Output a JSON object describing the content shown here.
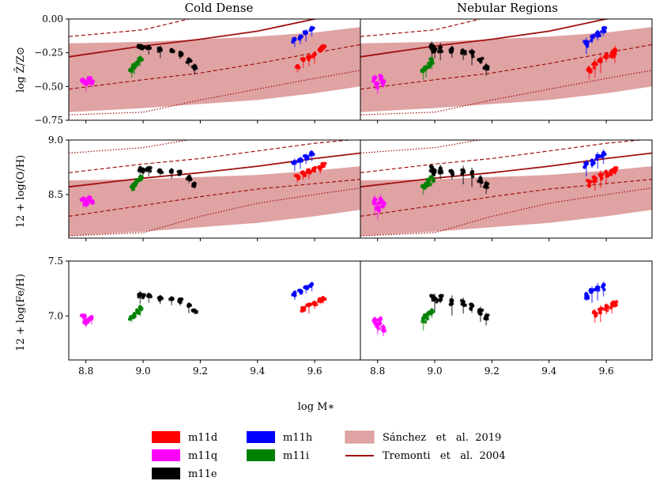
{
  "chart_data": {
    "type": "scatter",
    "column_titles": [
      "Cold Dense",
      "Nebular Regions"
    ],
    "xlabel": "log M∗",
    "xlim": [
      8.74,
      9.76
    ],
    "xticks": [
      8.8,
      9.0,
      9.2,
      9.4,
      9.6
    ],
    "xtick_labels": [
      "8.8",
      "9.0",
      "9.2",
      "9.4",
      "9.6"
    ],
    "rows": [
      {
        "ylabel": "log Z̄/Z⊙",
        "ylim": [
          -0.75,
          0.0
        ],
        "yticks": [
          -0.75,
          -0.5,
          -0.25,
          0.0
        ],
        "ytick_labels": [
          "−0.75",
          "−0.50",
          "−0.25",
          "0.00"
        ],
        "sanchez_band": {
          "x": [
            8.74,
            9.0,
            9.2,
            9.4,
            9.6,
            9.76
          ],
          "low": [
            -0.69,
            -0.66,
            -0.63,
            -0.6,
            -0.55,
            -0.5
          ],
          "high": [
            -0.18,
            -0.17,
            -0.15,
            -0.13,
            -0.1,
            -0.06
          ]
        },
        "tremonti_median": {
          "x": [
            8.74,
            9.0,
            9.2,
            9.4,
            9.6,
            9.76
          ],
          "y": [
            -0.28,
            -0.2,
            -0.15,
            -0.09,
            0.0,
            0.05
          ]
        },
        "tremonti_16_84": {
          "x": [
            8.74,
            9.0,
            9.2,
            9.4,
            9.6,
            9.76
          ],
          "low": [
            -0.52,
            -0.45,
            -0.4,
            -0.33,
            -0.25,
            -0.19
          ],
          "high": [
            -0.13,
            -0.08,
            0.02,
            0.12,
            0.22,
            0.3
          ]
        },
        "tremonti_2_98": {
          "x": [
            8.74,
            9.0,
            9.2,
            9.4,
            9.6,
            9.76
          ],
          "low": [
            -0.71,
            -0.69,
            -0.6,
            -0.52,
            -0.44,
            -0.38
          ],
          "high": [
            0.0,
            0.08,
            0.2,
            0.3,
            0.42,
            0.5
          ]
        },
        "series": [
          {
            "name": "m11d",
            "color": "#ff0000",
            "x": [
              9.54,
              9.56,
              9.58,
              9.6,
              9.62,
              9.63
            ],
            "cold": [
              -0.35,
              -0.3,
              -0.28,
              -0.26,
              -0.22,
              -0.2
            ],
            "nebular": [
              -0.37,
              -0.33,
              -0.3,
              -0.27,
              -0.25,
              -0.23
            ]
          },
          {
            "name": "m11q",
            "color": "#ff00ff",
            "x": [
              8.79,
              8.8,
              8.81,
              8.82
            ],
            "cold": [
              -0.45,
              -0.47,
              -0.44,
              -0.46
            ],
            "nebular": [
              -0.44,
              -0.48,
              -0.42,
              -0.46
            ]
          },
          {
            "name": "m11e",
            "color": "#000000",
            "x": [
              8.99,
              9.0,
              9.02,
              9.06,
              9.1,
              9.13,
              9.16,
              9.18
            ],
            "cold": [
              -0.2,
              -0.21,
              -0.21,
              -0.22,
              -0.23,
              -0.25,
              -0.3,
              -0.35
            ],
            "nebular": [
              -0.2,
              -0.22,
              -0.21,
              -0.22,
              -0.24,
              -0.25,
              -0.3,
              -0.35
            ]
          },
          {
            "name": "m11h",
            "color": "#0000ff",
            "x": [
              9.53,
              9.55,
              9.57,
              9.59
            ],
            "cold": [
              -0.15,
              -0.13,
              -0.1,
              -0.07
            ],
            "nebular": [
              -0.17,
              -0.13,
              -0.1,
              -0.07
            ]
          },
          {
            "name": "m11i",
            "color": "#008000",
            "x": [
              8.96,
              8.97,
              8.98,
              8.99
            ],
            "cold": [
              -0.37,
              -0.34,
              -0.32,
              -0.29
            ],
            "nebular": [
              -0.38,
              -0.36,
              -0.33,
              -0.3
            ]
          }
        ]
      },
      {
        "ylabel": "12 + log(O/H)",
        "ylim": [
          8.1,
          9.0
        ],
        "yticks": [
          8.5,
          9.0
        ],
        "ytick_labels": [
          "8.5",
          "9.0"
        ],
        "sanchez_band": {
          "x": [
            8.74,
            9.0,
            9.2,
            9.4,
            9.6,
            9.76
          ],
          "low": [
            8.12,
            8.16,
            8.2,
            8.24,
            8.3,
            8.36
          ],
          "high": [
            8.63,
            8.64,
            8.66,
            8.68,
            8.72,
            8.76
          ]
        },
        "tremonti_median": {
          "x": [
            8.74,
            9.0,
            9.2,
            9.4,
            9.6,
            9.76
          ],
          "y": [
            8.57,
            8.65,
            8.7,
            8.76,
            8.83,
            8.88
          ]
        },
        "tremonti_16_84": {
          "x": [
            8.74,
            9.0,
            9.2,
            9.4,
            9.6,
            9.76
          ],
          "low": [
            8.3,
            8.4,
            8.48,
            8.55,
            8.6,
            8.64
          ],
          "high": [
            8.7,
            8.78,
            8.83,
            8.9,
            8.97,
            9.01
          ]
        },
        "tremonti_2_98": {
          "x": [
            8.74,
            9.0,
            9.2,
            9.4,
            9.6,
            9.76
          ],
          "low": [
            8.12,
            8.15,
            8.3,
            8.42,
            8.5,
            8.56
          ],
          "high": [
            8.88,
            8.93,
            9.02,
            9.1,
            9.16,
            9.2
          ]
        },
        "series": [
          {
            "name": "m11d",
            "color": "#ff0000",
            "x": [
              9.54,
              9.56,
              9.58,
              9.6,
              9.62,
              9.63
            ],
            "cold": [
              8.67,
              8.7,
              8.72,
              8.74,
              8.75,
              8.78
            ],
            "nebular": [
              8.62,
              8.65,
              8.68,
              8.7,
              8.72,
              8.74
            ]
          },
          {
            "name": "m11q",
            "color": "#ff00ff",
            "x": [
              8.79,
              8.8,
              8.81,
              8.82
            ],
            "cold": [
              8.46,
              8.43,
              8.47,
              8.44
            ],
            "nebular": [
              8.45,
              8.38,
              8.46,
              8.42
            ]
          },
          {
            "name": "m11e",
            "color": "#000000",
            "x": [
              8.99,
              9.0,
              9.02,
              9.06,
              9.1,
              9.13,
              9.16,
              9.18
            ],
            "cold": [
              8.74,
              8.73,
              8.74,
              8.72,
              8.72,
              8.71,
              8.66,
              8.6
            ],
            "nebular": [
              8.75,
              8.72,
              8.74,
              8.71,
              8.72,
              8.7,
              8.65,
              8.6
            ]
          },
          {
            "name": "m11h",
            "color": "#0000ff",
            "x": [
              9.53,
              9.55,
              9.57,
              9.59
            ],
            "cold": [
              8.8,
              8.82,
              8.85,
              8.88
            ],
            "nebular": [
              8.78,
              8.81,
              8.85,
              8.88
            ]
          },
          {
            "name": "m11i",
            "color": "#008000",
            "x": [
              8.96,
              8.97,
              8.98,
              8.99
            ],
            "cold": [
              8.57,
              8.6,
              8.63,
              8.66
            ],
            "nebular": [
              8.57,
              8.6,
              8.63,
              8.66
            ]
          }
        ]
      },
      {
        "ylabel": "12 + log(Fe/H)",
        "ylim": [
          6.6,
          7.5
        ],
        "yticks": [
          7.0,
          7.5
        ],
        "ytick_labels": [
          "7.0",
          "7.5"
        ],
        "series": [
          {
            "name": "m11d",
            "color": "#ff0000",
            "x": [
              9.56,
              9.58,
              9.6,
              9.62,
              9.63
            ],
            "cold": [
              7.07,
              7.1,
              7.12,
              7.15,
              7.16
            ],
            "nebular": [
              7.03,
              7.06,
              7.09,
              7.11,
              7.12
            ]
          },
          {
            "name": "m11q",
            "color": "#ff00ff",
            "x": [
              8.79,
              8.8,
              8.81,
              8.82
            ],
            "cold": [
              7.0,
              6.95,
              6.97,
              6.99
            ],
            "nebular": [
              6.97,
              6.92,
              6.97,
              6.9
            ]
          },
          {
            "name": "m11e",
            "color": "#000000",
            "x": [
              8.99,
              9.0,
              9.02,
              9.06,
              9.1,
              9.13,
              9.16,
              9.18
            ],
            "cold": [
              7.2,
              7.19,
              7.19,
              7.17,
              7.16,
              7.15,
              7.1,
              7.05
            ],
            "nebular": [
              7.18,
              7.16,
              7.18,
              7.14,
              7.13,
              7.1,
              7.05,
              7.0
            ]
          },
          {
            "name": "m11h",
            "color": "#0000ff",
            "x": [
              9.53,
              9.55,
              9.57,
              9.59
            ],
            "cold": [
              7.21,
              7.23,
              7.26,
              7.29
            ],
            "nebular": [
              7.2,
              7.23,
              7.26,
              7.28
            ]
          },
          {
            "name": "m11i",
            "color": "#008000",
            "x": [
              8.96,
              8.97,
              8.98,
              8.99
            ],
            "cold": [
              6.99,
              7.02,
              7.05,
              7.08
            ],
            "nebular": [
              6.98,
              7.0,
              7.03,
              7.05
            ]
          }
        ]
      }
    ],
    "legend": {
      "placement": "bottom-center",
      "entries": [
        {
          "label": "m11d",
          "color": "#ff0000",
          "kind": "patch"
        },
        {
          "label": "m11q",
          "color": "#ff00ff",
          "kind": "patch"
        },
        {
          "label": "m11e",
          "color": "#000000",
          "kind": "patch"
        },
        {
          "label": "m11h",
          "color": "#0000ff",
          "kind": "patch"
        },
        {
          "label": "m11i",
          "color": "#008000",
          "kind": "patch"
        },
        {
          "label": "Sánchez   et   al.  2019",
          "color": "#e0a4a4",
          "kind": "band"
        },
        {
          "label": "Tremonti   et   al.  2004",
          "color": "#a01010",
          "kind": "line"
        }
      ]
    }
  }
}
